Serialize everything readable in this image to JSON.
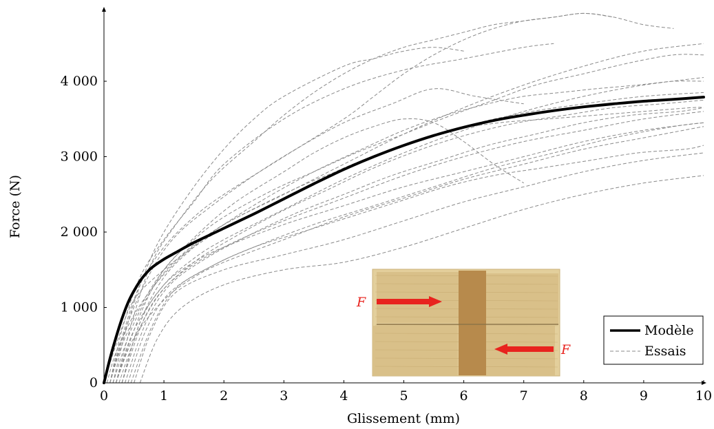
{
  "chart_data": {
    "type": "line",
    "title": "",
    "xlabel": "Glissement (mm)",
    "ylabel": "Force (N)",
    "xlim": [
      0,
      10
    ],
    "ylim": [
      0,
      4900
    ],
    "xticks": [
      "0",
      "1",
      "2",
      "3",
      "4",
      "5",
      "6",
      "7",
      "8",
      "9",
      "10"
    ],
    "yticks": [
      "0",
      "1 000",
      "2 000",
      "3 000",
      "4 000"
    ],
    "xtick_values": [
      0,
      1,
      2,
      3,
      4,
      5,
      6,
      7,
      8,
      9,
      10
    ],
    "ytick_values": [
      0,
      1000,
      2000,
      3000,
      4000
    ],
    "grid": false,
    "legend_position": "bottom-right",
    "series": [
      {
        "name": "Modèle",
        "style": "solid-thick",
        "color": "#000000",
        "x": [
          0,
          0.1,
          0.2,
          0.3,
          0.4,
          0.5,
          0.6,
          0.7,
          0.8,
          1,
          1.2,
          1.5,
          2,
          2.5,
          3,
          3.5,
          4,
          4.5,
          5,
          5.5,
          6,
          6.5,
          7,
          7.5,
          8,
          8.5,
          9,
          9.5,
          10
        ],
        "y": [
          0,
          320,
          600,
          850,
          1060,
          1220,
          1350,
          1450,
          1530,
          1640,
          1730,
          1860,
          2050,
          2240,
          2440,
          2640,
          2830,
          3000,
          3150,
          3280,
          3390,
          3480,
          3550,
          3610,
          3660,
          3700,
          3735,
          3760,
          3790
        ]
      },
      {
        "name": "Essais",
        "style": "dashed",
        "color": "#888888",
        "curves": [
          {
            "x": [
              0,
              0.2,
              0.5,
              1,
              1.5,
              2,
              3,
              4,
              5,
              6,
              7,
              8,
              9,
              10
            ],
            "y": [
              0,
              500,
              1100,
              1500,
              1800,
              2050,
              2450,
              2850,
              3150,
              3400,
              3580,
              3700,
              3800,
              3850
            ]
          },
          {
            "x": [
              0.1,
              0.3,
              0.6,
              1,
              1.5,
              2,
              3,
              4,
              5,
              6,
              7,
              7.5
            ],
            "y": [
              0,
              700,
              1400,
              1900,
              2400,
              2900,
              3500,
              3900,
              4150,
              4300,
              4450,
              4500
            ]
          },
          {
            "x": [
              0.15,
              0.4,
              0.7,
              1,
              1.5,
              2,
              2.5,
              3,
              4,
              4.5,
              5,
              5.5,
              6
            ],
            "y": [
              0,
              800,
              1500,
              2000,
              2600,
              3100,
              3500,
              3800,
              4200,
              4300,
              4400,
              4450,
              4400
            ]
          },
          {
            "x": [
              0.2,
              0.5,
              0.8,
              1.2,
              1.8,
              2.5,
              3,
              3.5,
              4,
              4.5,
              5,
              5.5,
              6,
              6.5,
              7,
              7.5,
              8,
              8.5
            ],
            "y": [
              0,
              900,
              1600,
              2100,
              2700,
              3200,
              3550,
              3850,
              4100,
              4300,
              4450,
              4550,
              4650,
              4750,
              4800,
              4850,
              4900,
              4850
            ]
          },
          {
            "x": [
              0.1,
              0.3,
              0.6,
              1,
              1.5,
              2,
              3,
              4,
              4.5,
              5,
              5.5,
              6,
              6.5,
              7,
              7.5,
              8,
              8.5,
              9,
              9.5
            ],
            "y": [
              0,
              600,
              1300,
              1800,
              2200,
              2500,
              3000,
              3500,
              3800,
              4100,
              4350,
              4550,
              4700,
              4800,
              4850,
              4900,
              4850,
              4750,
              4700
            ]
          },
          {
            "x": [
              0.3,
              0.6,
              1,
              1.5,
              2,
              3,
              4,
              5,
              6,
              7,
              8,
              9,
              10
            ],
            "y": [
              0,
              800,
              1400,
              1800,
              2100,
              2500,
              2900,
              3300,
              3650,
              3950,
              4200,
              4400,
              4500
            ]
          },
          {
            "x": [
              0.2,
              0.5,
              1,
              1.5,
              2,
              3,
              4,
              5,
              6,
              7,
              8,
              9,
              10
            ],
            "y": [
              0,
              700,
              1300,
              1650,
              1900,
              2300,
              2700,
              3050,
              3350,
              3600,
              3800,
              3950,
              4050
            ]
          },
          {
            "x": [
              0.1,
              0.4,
              0.8,
              1.2,
              1.8,
              2.5,
              3.2,
              4,
              4.8,
              5.5,
              6.2,
              7
            ],
            "y": [
              0,
              800,
              1500,
              1950,
              2350,
              2750,
              3100,
              3450,
              3700,
              3900,
              3800,
              3700
            ]
          },
          {
            "x": [
              0.3,
              0.7,
              1.2,
              2,
              3,
              4,
              5,
              6,
              7,
              8,
              9,
              10
            ],
            "y": [
              0,
              900,
              1400,
              1800,
              2150,
              2450,
              2750,
              3000,
              3200,
              3350,
              3500,
              3600
            ]
          },
          {
            "x": [
              0.2,
              0.5,
              1,
              1.5,
              2,
              3,
              4,
              5,
              6,
              7,
              8,
              9,
              10
            ],
            "y": [
              0,
              600,
              1100,
              1400,
              1600,
              1900,
              2200,
              2450,
              2700,
              2900,
              3100,
              3250,
              3400
            ]
          },
          {
            "x": [
              0.5,
              0.8,
              1.2,
              2,
              3,
              4,
              5,
              6,
              7,
              8,
              9,
              10
            ],
            "y": [
              0,
              700,
              1200,
              1500,
              1700,
              1900,
              2150,
              2400,
              2600,
              2800,
              2950,
              3050
            ]
          },
          {
            "x": [
              0.6,
              0.9,
              1.3,
              2,
              3,
              4,
              5,
              6,
              7,
              8,
              9,
              10
            ],
            "y": [
              0,
              600,
              1000,
              1300,
              1500,
              1600,
              1800,
              2050,
              2300,
              2500,
              2650,
              2750
            ]
          },
          {
            "x": [
              0.4,
              0.7,
              1.1,
              1.8,
              2.5,
              3.5,
              4.5,
              5.5,
              6.5,
              7.5,
              8.5,
              9.5,
              10
            ],
            "y": [
              0,
              700,
              1200,
              1550,
              1800,
              2100,
              2350,
              2600,
              2850,
              3050,
              3250,
              3400,
              3450
            ]
          },
          {
            "x": [
              0.1,
              0.3,
              0.6,
              1,
              1.6,
              2.2,
              3,
              3.5,
              4,
              4.5,
              5,
              5.5,
              6,
              6.5,
              7
            ],
            "y": [
              0,
              500,
              1000,
              1500,
              2000,
              2400,
              2800,
              3050,
              3250,
              3400,
              3500,
              3450,
              3200,
              2900,
              2650
            ]
          },
          {
            "x": [
              0.2,
              0.6,
              1,
              1.5,
              2,
              2.8,
              3.5,
              4.2,
              5,
              5.8,
              6.5,
              7.2,
              8,
              8.8,
              9.5,
              10
            ],
            "y": [
              0,
              900,
              1500,
              1900,
              2200,
              2550,
              2800,
              3050,
              3300,
              3550,
              3750,
              3950,
              4100,
              4250,
              4350,
              4350
            ]
          },
          {
            "x": [
              0.3,
              0.6,
              1,
              1.5,
              2,
              3,
              4,
              5,
              6,
              7,
              8,
              9,
              10
            ],
            "y": [
              0,
              800,
              1300,
              1600,
              1800,
              2100,
              2350,
              2600,
              2800,
              3000,
              3200,
              3350,
              3450
            ]
          },
          {
            "x": [
              0.05,
              0.2,
              0.5,
              0.9,
              1.4,
              2,
              2.7,
              3.5,
              4.3,
              5,
              5.7,
              6.4,
              7,
              7.6,
              8.2,
              8.9,
              9.5,
              10
            ],
            "y": [
              0,
              400,
              900,
              1350,
              1750,
              2100,
              2450,
              2800,
              3100,
              3350,
              3550,
              3700,
              3800,
              3850,
              3900,
              3950,
              4000,
              4000
            ]
          },
          {
            "x": [
              0.35,
              0.7,
              1.1,
              1.7,
              2.4,
              3.2,
              4,
              4.8,
              5.6,
              6.4,
              7.2,
              8,
              8.8,
              9.6,
              10
            ],
            "y": [
              0,
              800,
              1300,
              1650,
              1950,
              2250,
              2500,
              2750,
              2950,
              3150,
              3300,
              3450,
              3550,
              3600,
              3650
            ]
          },
          {
            "x": [
              0.25,
              0.55,
              0.95,
              1.5,
              2.1,
              2.9,
              3.7,
              4.5,
              5.3,
              6.1,
              6.9,
              7.7,
              8.5,
              9.3,
              10
            ],
            "y": [
              0,
              650,
              1200,
              1600,
              1900,
              2250,
              2550,
              2850,
              3100,
              3300,
              3450,
              3550,
              3650,
              3700,
              3750
            ]
          },
          {
            "x": [
              0.15,
              0.45,
              0.85,
              1.3,
              1.9,
              2.6,
              3.4,
              4.2,
              5,
              5.8,
              6.6,
              7.4,
              8.2,
              9,
              9.8,
              10
            ],
            "y": [
              0,
              700,
              1300,
              1700,
              2050,
              2350,
              2650,
              2900,
              3150,
              3350,
              3450,
              3500,
              3550,
              3600,
              3650,
              3650
            ]
          },
          {
            "x": [
              0.45,
              0.8,
              1.2,
              1.8,
              2.5,
              3.3,
              4.1,
              4.9,
              5.7,
              6.5,
              7.3,
              8.1,
              8.9,
              9.7,
              10
            ],
            "y": [
              0,
              750,
              1250,
              1550,
              1800,
              2000,
              2200,
              2400,
              2600,
              2750,
              2850,
              2950,
              3050,
              3100,
              3150
            ]
          }
        ]
      }
    ]
  },
  "inset": {
    "label_left": "F",
    "label_right": "F",
    "arrow_color": "#e8231e"
  }
}
